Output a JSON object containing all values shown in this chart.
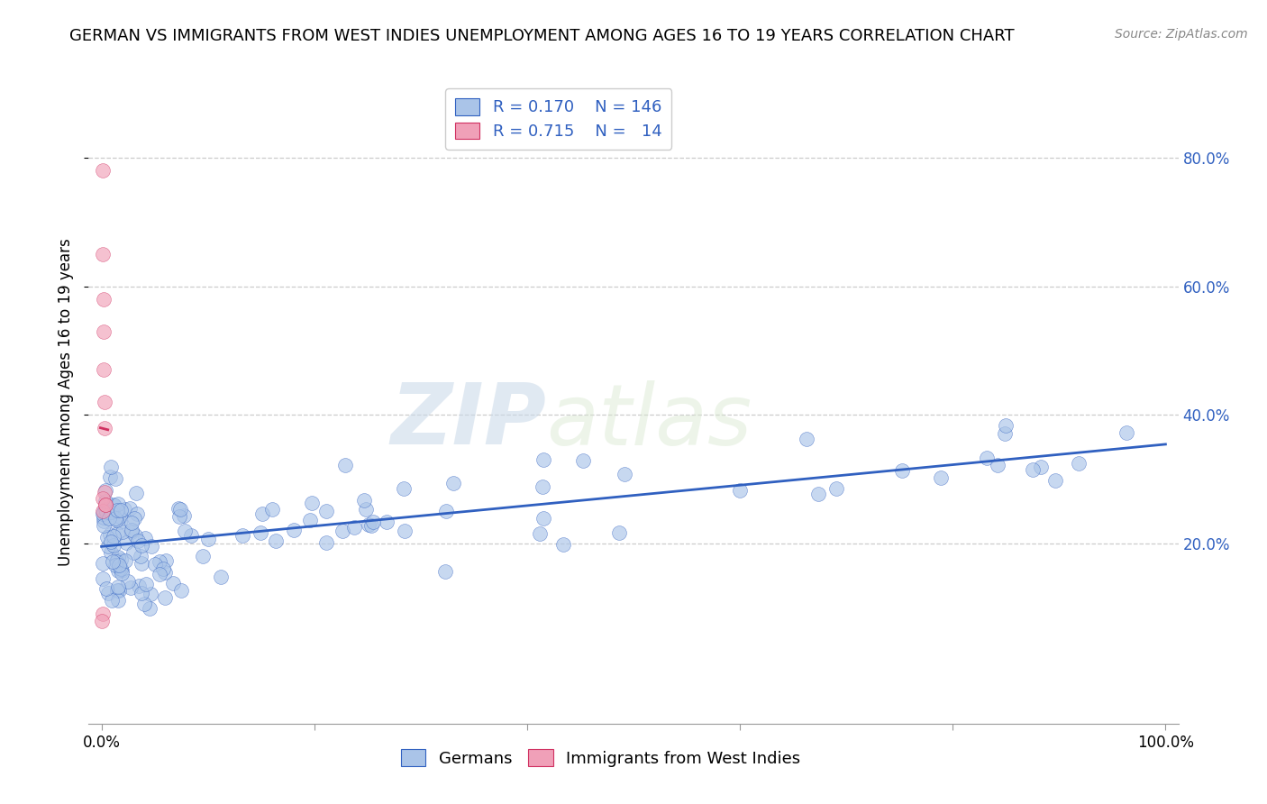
{
  "title": "GERMAN VS IMMIGRANTS FROM WEST INDIES UNEMPLOYMENT AMONG AGES 16 TO 19 YEARS CORRELATION CHART",
  "source": "Source: ZipAtlas.com",
  "ylabel": "Unemployment Among Ages 16 to 19 years",
  "german_color": "#aac4e8",
  "west_indies_color": "#f0a0b8",
  "regression_german_color": "#3060c0",
  "regression_wi_color": "#d03060",
  "legend_r_german": "0.170",
  "legend_n_german": "146",
  "legend_r_wi": "0.715",
  "legend_n_wi": "14",
  "watermark_zip": "ZIP",
  "watermark_atlas": "atlas",
  "title_fontsize": 13,
  "axis_label_fontsize": 12,
  "tick_fontsize": 12,
  "legend_fontsize": 13,
  "source_fontsize": 10
}
